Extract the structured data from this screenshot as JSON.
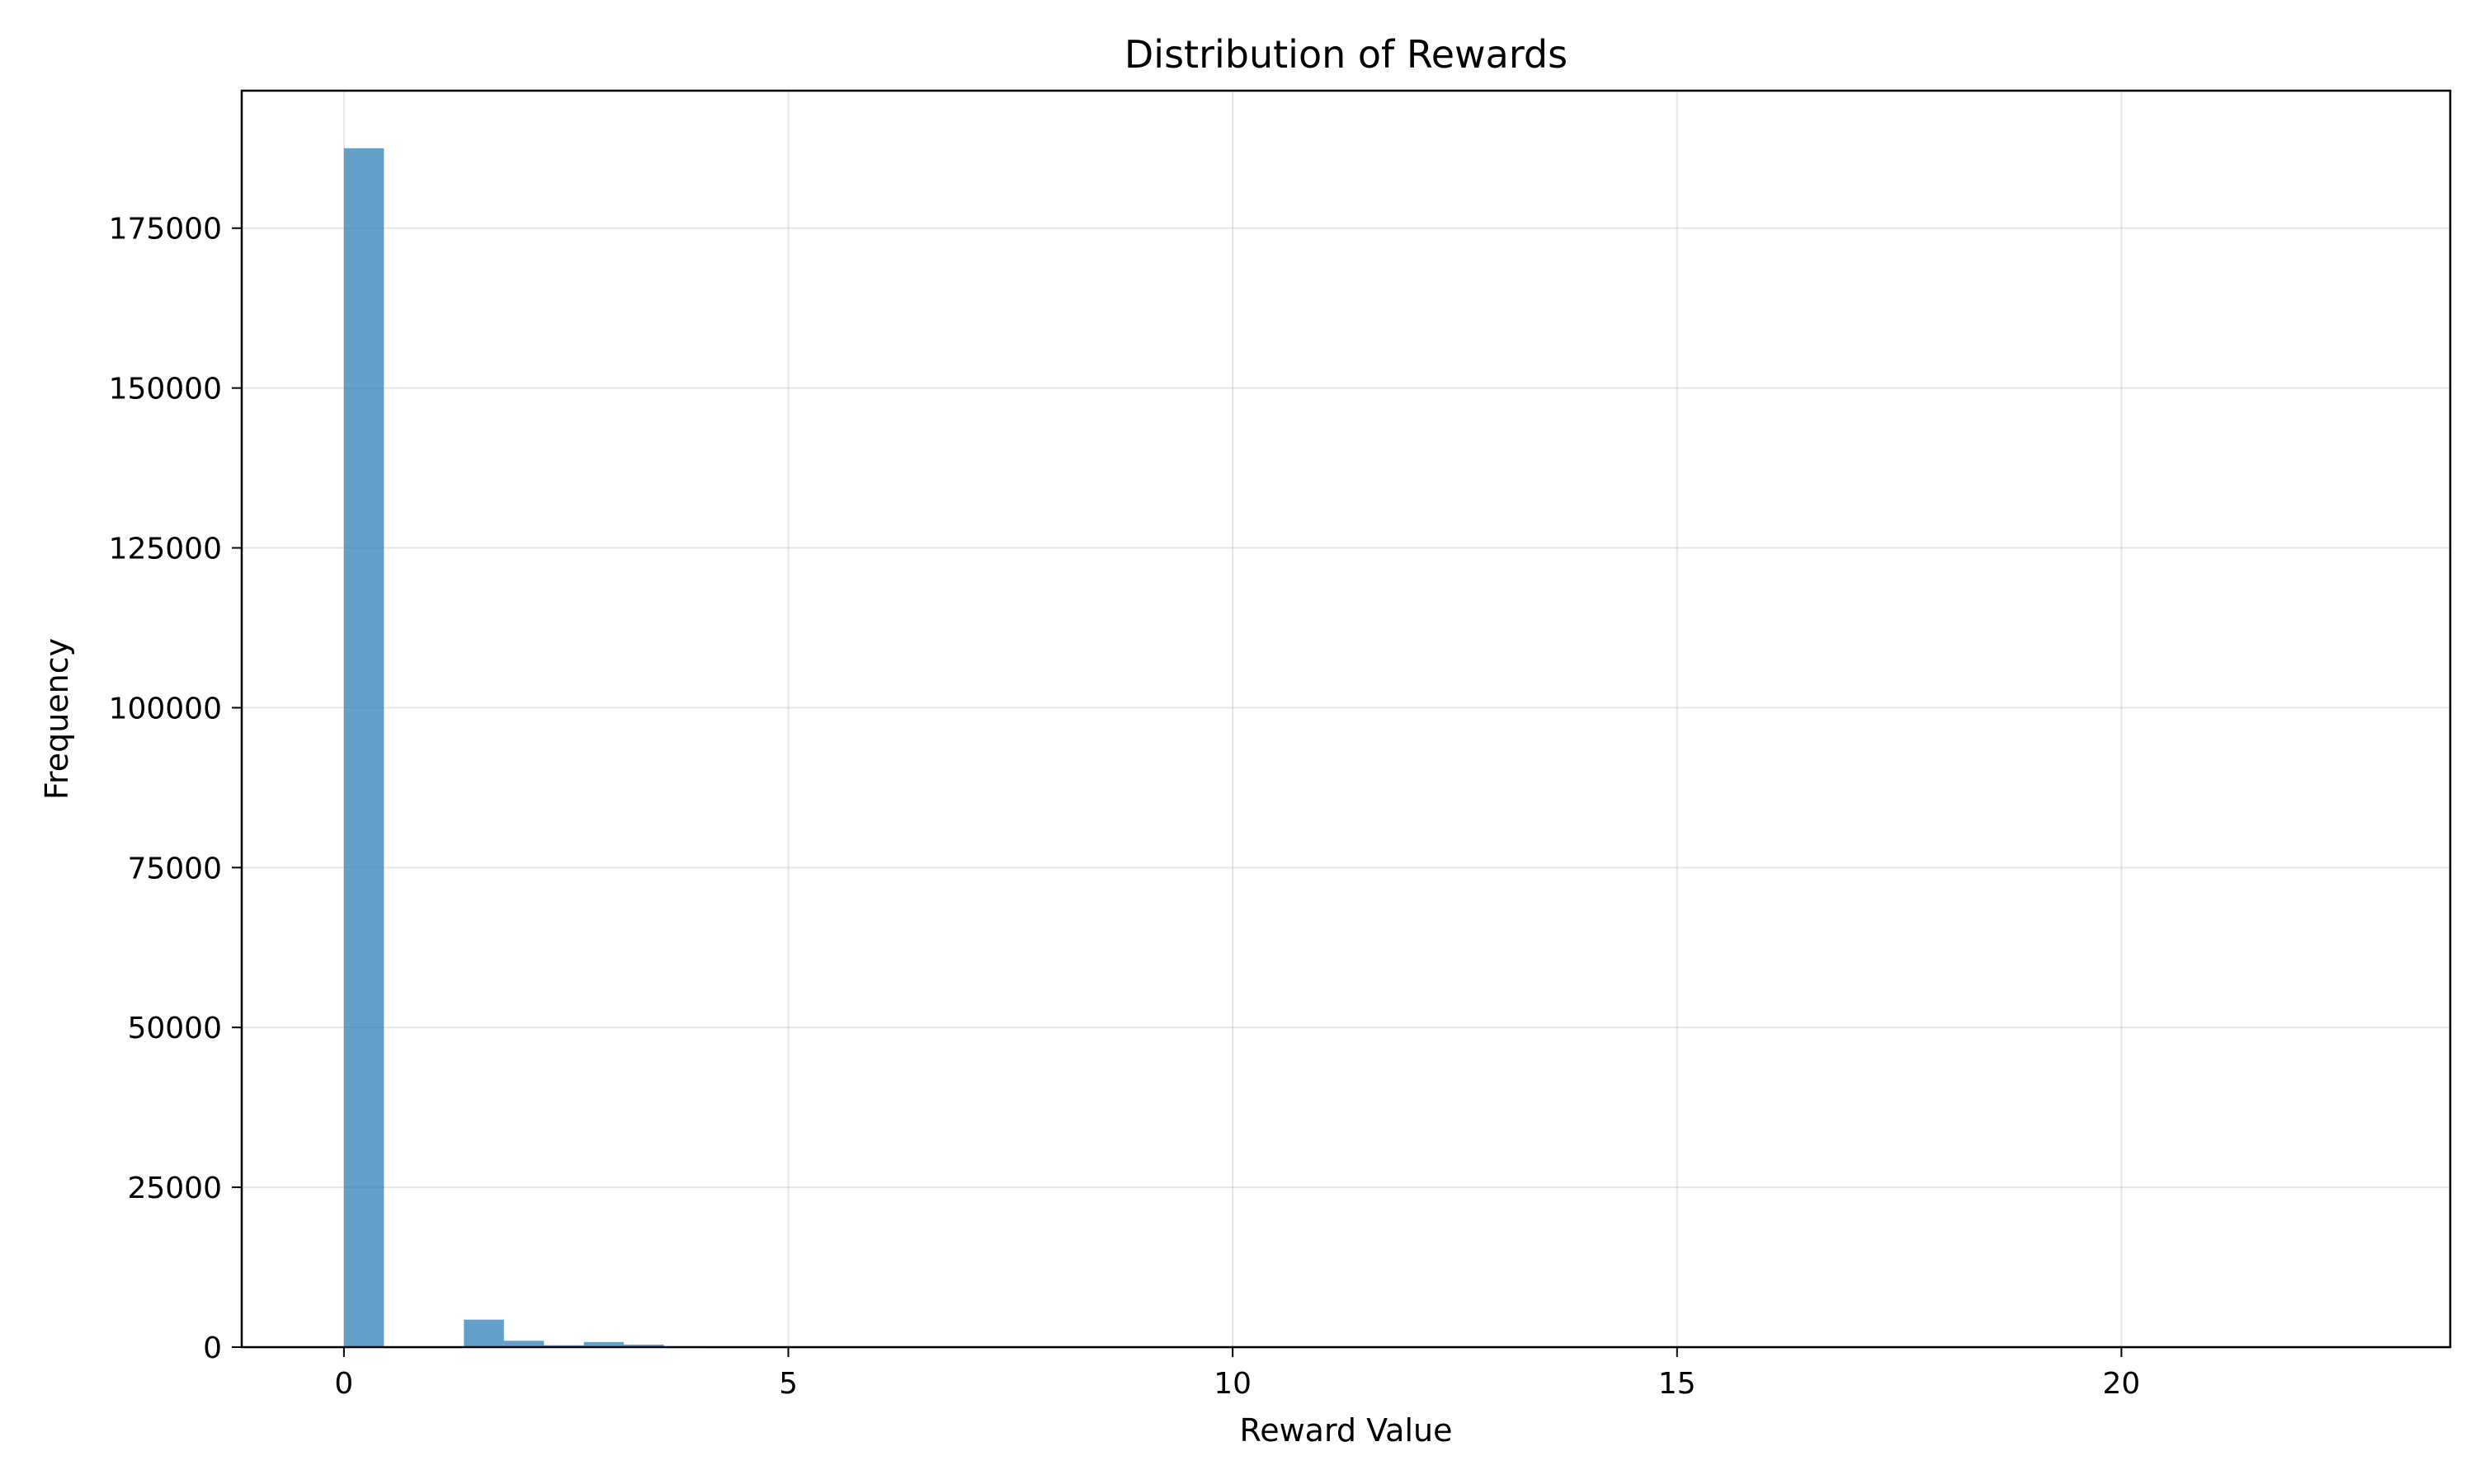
{
  "chart_data": {
    "type": "bar",
    "title": "Distribution of Rewards",
    "xlabel": "Reward Value",
    "ylabel": "Frequency",
    "xlim": [
      -1.15,
      23.7
    ],
    "ylim": [
      0,
      196500
    ],
    "xticks": [
      0,
      5,
      10,
      15,
      20
    ],
    "yticks": [
      0,
      25000,
      50000,
      75000,
      100000,
      125000,
      150000,
      175000
    ],
    "grid": true,
    "bar_color": "#1f77b4",
    "bar_opacity": 0.7,
    "bin_width": 0.45,
    "bins": [
      {
        "x0": 0.0,
        "value": 187500
      },
      {
        "x0": 0.45,
        "value": 0
      },
      {
        "x0": 0.9,
        "value": 0
      },
      {
        "x0": 1.35,
        "value": 4300
      },
      {
        "x0": 1.8,
        "value": 1000
      },
      {
        "x0": 2.25,
        "value": 300
      },
      {
        "x0": 2.7,
        "value": 800
      },
      {
        "x0": 3.15,
        "value": 400
      },
      {
        "x0": 3.6,
        "value": 150
      },
      {
        "x0": 4.05,
        "value": 60
      },
      {
        "x0": 4.5,
        "value": 30
      }
    ]
  }
}
